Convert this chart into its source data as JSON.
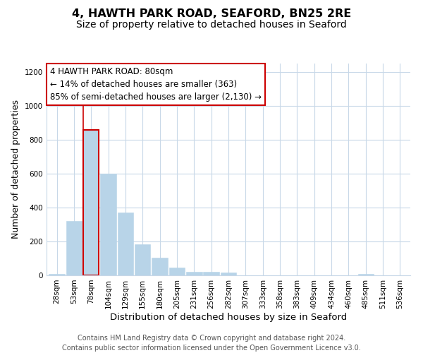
{
  "title": "4, HAWTH PARK ROAD, SEAFORD, BN25 2RE",
  "subtitle": "Size of property relative to detached houses in Seaford",
  "xlabel": "Distribution of detached houses by size in Seaford",
  "ylabel": "Number of detached properties",
  "bar_labels": [
    "28sqm",
    "53sqm",
    "78sqm",
    "104sqm",
    "129sqm",
    "155sqm",
    "180sqm",
    "205sqm",
    "231sqm",
    "256sqm",
    "282sqm",
    "307sqm",
    "333sqm",
    "358sqm",
    "383sqm",
    "409sqm",
    "434sqm",
    "460sqm",
    "485sqm",
    "511sqm",
    "536sqm"
  ],
  "bar_values": [
    10,
    320,
    860,
    600,
    370,
    185,
    105,
    47,
    20,
    20,
    17,
    0,
    0,
    0,
    0,
    0,
    0,
    0,
    10,
    0,
    0
  ],
  "bar_color": "#b8d4e8",
  "bar_edge_color": "#b8d4e8",
  "highlight_bar_index": 2,
  "highlight_line_color": "#cc0000",
  "annotation_title": "4 HAWTH PARK ROAD: 80sqm",
  "annotation_line1": "← 14% of detached houses are smaller (363)",
  "annotation_line2": "85% of semi-detached houses are larger (2,130) →",
  "annotation_box_facecolor": "#ffffff",
  "annotation_box_edgecolor": "#cc0000",
  "ylim": [
    0,
    1250
  ],
  "yticks": [
    0,
    200,
    400,
    600,
    800,
    1000,
    1200
  ],
  "footer_line1": "Contains HM Land Registry data © Crown copyright and database right 2024.",
  "footer_line2": "Contains public sector information licensed under the Open Government Licence v3.0.",
  "background_color": "#ffffff",
  "grid_color": "#c8d8e8",
  "title_fontsize": 11.5,
  "subtitle_fontsize": 10,
  "xlabel_fontsize": 9.5,
  "ylabel_fontsize": 9,
  "tick_fontsize": 7.5,
  "annotation_fontsize": 8.5,
  "footer_fontsize": 7
}
